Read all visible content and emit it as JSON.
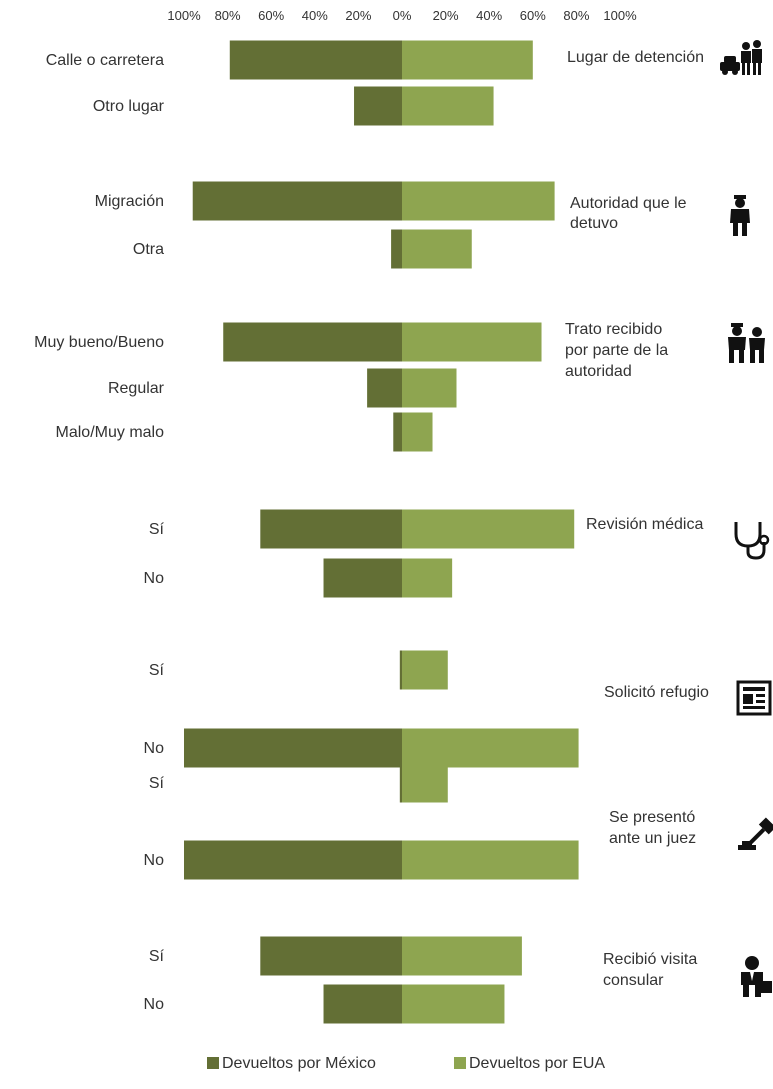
{
  "chart_data": {
    "type": "bar",
    "orientation": "horizontal-diverging",
    "x_ticks": [
      "100%",
      "80%",
      "60%",
      "40%",
      "20%",
      "0%",
      "20%",
      "40%",
      "60%",
      "80%",
      "100%"
    ],
    "xlim": [
      -100,
      100
    ],
    "grid": false,
    "legend_position": "bottom",
    "series": [
      {
        "name": "Devueltos por México",
        "color": "#636f35"
      },
      {
        "name": "Devueltos por EUA",
        "color": "#8ea550"
      }
    ],
    "groups": [
      {
        "title": "Lugar de detención",
        "icon": "police-car-icon",
        "categories": [
          "Calle o carretera",
          "Otro lugar"
        ],
        "mexico": [
          79,
          22
        ],
        "eua": [
          60,
          42
        ]
      },
      {
        "title": "Autoridad que le detuvo",
        "icon": "police-officer-icon",
        "categories": [
          "Migración",
          "Otra"
        ],
        "mexico": [
          96,
          5
        ],
        "eua": [
          70,
          32
        ]
      },
      {
        "title": "Trato recibido por parte de la autoridad",
        "icon": "arrest-icon",
        "categories": [
          "Muy bueno/Bueno",
          "Regular",
          "Malo/Muy malo"
        ],
        "mexico": [
          82,
          16,
          4
        ],
        "eua": [
          64,
          25,
          14
        ]
      },
      {
        "title": "Revisión médica",
        "icon": "stethoscope-icon",
        "categories": [
          "Sí",
          "No"
        ],
        "mexico": [
          65,
          36
        ],
        "eua": [
          79,
          23
        ]
      },
      {
        "title": "Solicitó refugio",
        "icon": "document-icon",
        "categories": [
          "Sí",
          "No"
        ],
        "mexico": [
          1,
          100
        ],
        "eua": [
          21,
          81
        ]
      },
      {
        "title": "Se presentó ante un juez",
        "icon": "gavel-icon",
        "categories": [
          "Sí",
          "No"
        ],
        "mexico": [
          1,
          100
        ],
        "eua": [
          21,
          81
        ]
      },
      {
        "title": "Recibió visita consular",
        "icon": "businessman-icon",
        "categories": [
          "Sí",
          "No"
        ],
        "mexico": [
          65,
          36
        ],
        "eua": [
          55,
          47
        ]
      }
    ]
  }
}
